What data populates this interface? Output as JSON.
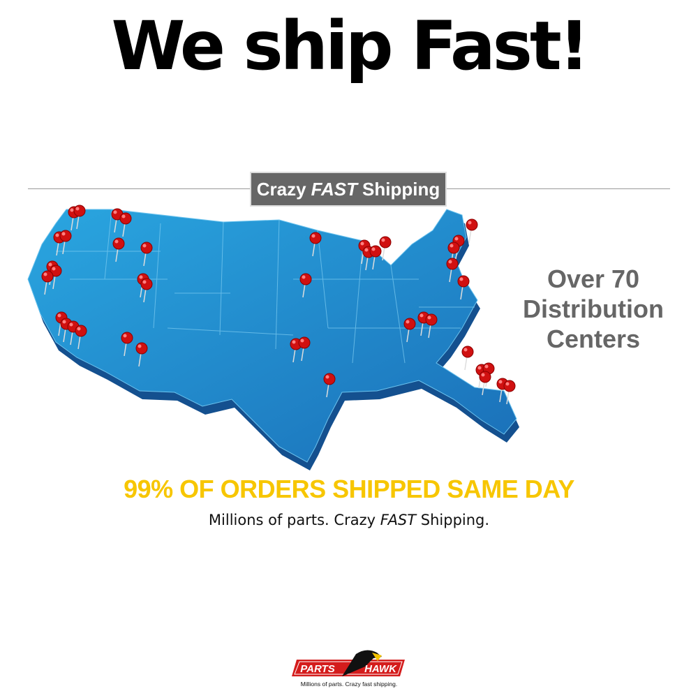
{
  "headline": "We ship Fast!",
  "banner": {
    "pre": "Crazy",
    "emph": "FAST",
    "post": "Shipping"
  },
  "side_text": [
    "Over 70",
    "Distribution",
    "Centers"
  ],
  "yellow_line": "99% OF ORDERS SHIPPED SAME DAY",
  "sub_line": {
    "pre": "Millions of parts. Crazy",
    "emph": "FAST",
    "post": "Shipping."
  },
  "logo": {
    "left": "PARTS",
    "right": "HAWK",
    "tagline": "Millions of parts. Crazy fast shipping."
  },
  "colors": {
    "accent_yellow": "#f7c600",
    "pin_red": "#d01010",
    "map_blue": "#1e9ad8",
    "banner_gray": "#666666"
  }
}
